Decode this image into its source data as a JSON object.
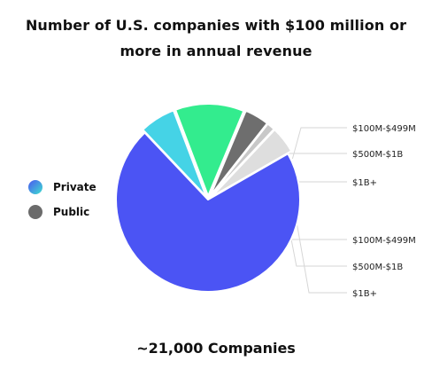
{
  "chart_data": {
    "type": "pie",
    "title": "Number of U.S. companies with $100 million or more in annual revenue",
    "title_lines": [
      "Number of U.S. companies with $100 million or",
      "more in annual revenue"
    ],
    "footer": "~21,000 Companies",
    "legend": {
      "placement": "left",
      "items": [
        {
          "name": "Private",
          "color": "#4a57f0",
          "color2": "#3ee0d0"
        },
        {
          "name": "Public",
          "color": "#6b6b6b"
        }
      ]
    },
    "slices": [
      {
        "group": "Private",
        "label": "$100M-$499M",
        "value": 71.2,
        "color": "#4b54f4",
        "explode": 0
      },
      {
        "group": "Private",
        "label": "$500M-$1B",
        "value": 6.3,
        "color": "#45d3e6",
        "explode": 4
      },
      {
        "group": "Private",
        "label": "$1B+",
        "value": 12.1,
        "color": "#33ec8e",
        "explode": 4
      },
      {
        "group": "Public",
        "label": "$100M-$499M",
        "value": 4.3,
        "color": "#6e6e6e",
        "explode": 5
      },
      {
        "group": "Public",
        "label": "$500M-$1B",
        "value": 1.4,
        "color": "#c8c8c8",
        "explode": 5
      },
      {
        "group": "Public",
        "label": "$1B+",
        "value": 4.7,
        "color": "#dedede",
        "explode": 5
      }
    ]
  }
}
